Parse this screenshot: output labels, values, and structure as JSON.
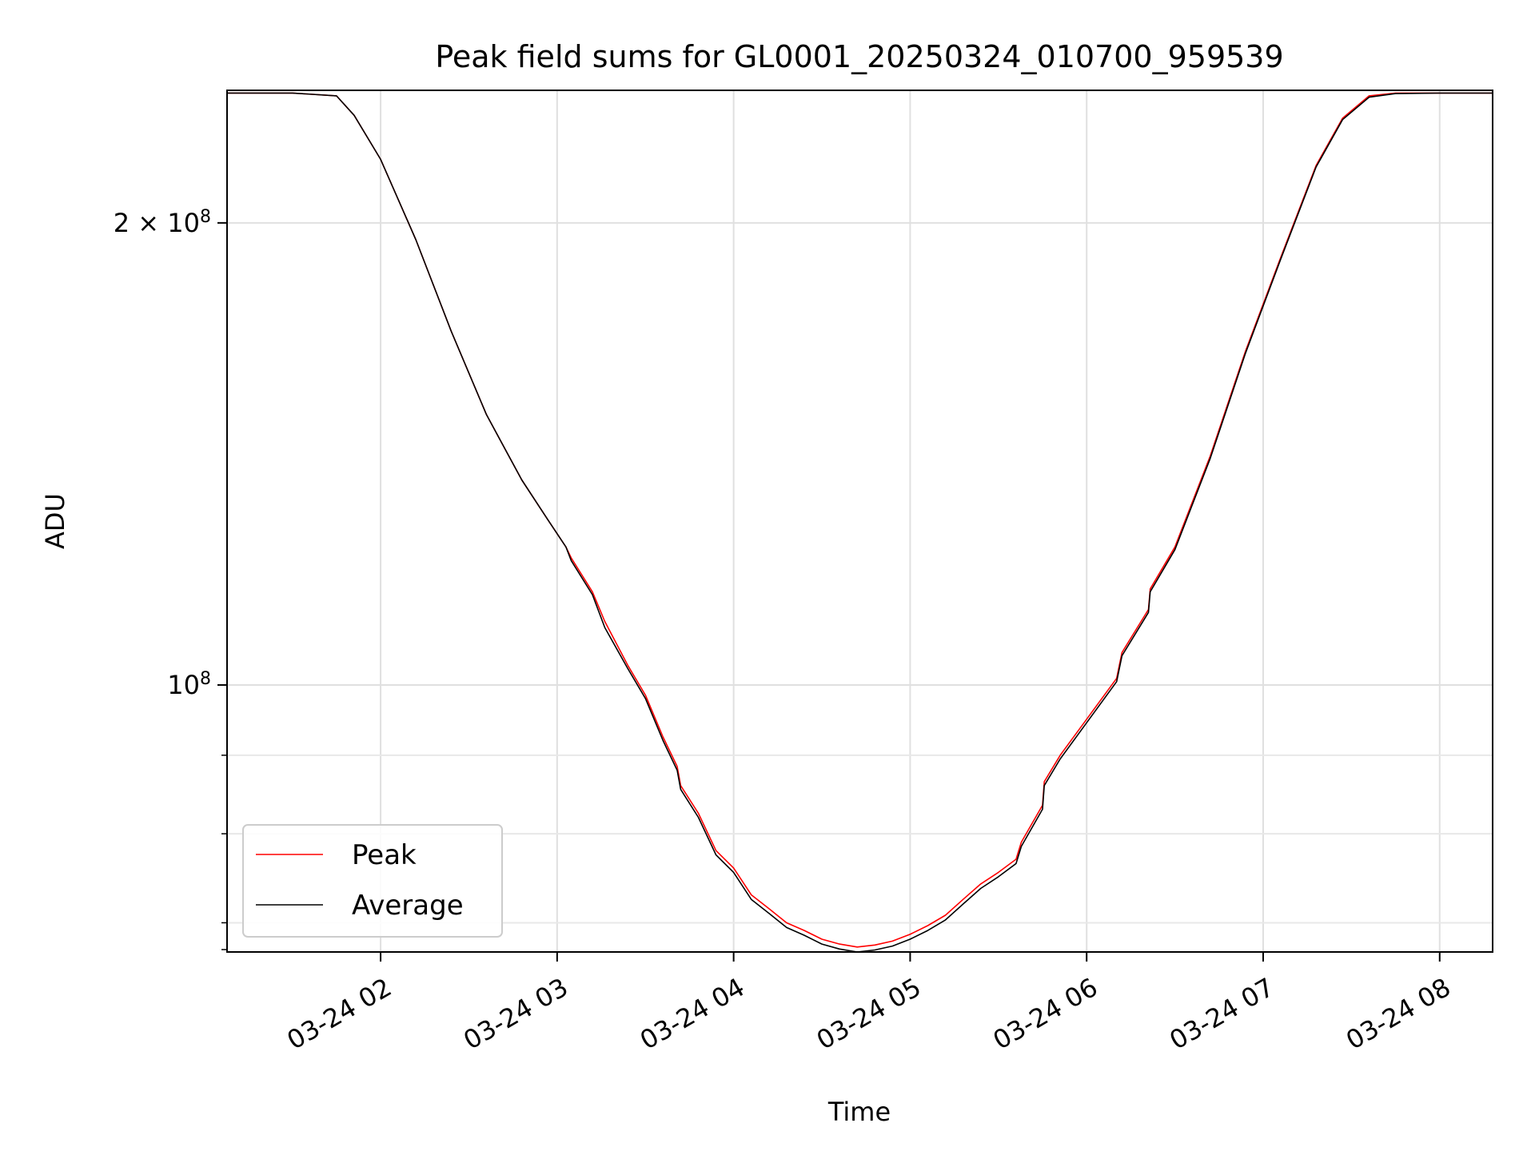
{
  "chart_data": {
    "type": "line",
    "title": "Peak field sums for GL0001_20250324_010700_959539",
    "xlabel": "Time",
    "ylabel": "ADU",
    "x_unit": "hours since 03-24 00:00",
    "xlim": [
      1.13,
      8.3
    ],
    "ylim": [
      67000000,
      244000000
    ],
    "y_scale": "log",
    "grid": true,
    "legend_position": "lower-left",
    "x_ticks": [
      {
        "value": 2,
        "label": "03-24 02"
      },
      {
        "value": 3,
        "label": "03-24 03"
      },
      {
        "value": 4,
        "label": "03-24 04"
      },
      {
        "value": 5,
        "label": "03-24 05"
      },
      {
        "value": 6,
        "label": "03-24 06"
      },
      {
        "value": 7,
        "label": "03-24 07"
      },
      {
        "value": 8,
        "label": "03-24 08"
      }
    ],
    "y_major_ticks": [
      {
        "value": 100000000,
        "base": "10",
        "exp": "8",
        "prefix": ""
      },
      {
        "value": 200000000,
        "base": "10",
        "exp": "8",
        "prefix": "2 × "
      }
    ],
    "y_minor_ticks": [
      70000000,
      80000000,
      90000000
    ],
    "series": [
      {
        "name": "Peak",
        "color": "#ff0000",
        "x": [
          1.13,
          1.5,
          1.75,
          1.85,
          2.0,
          2.2,
          2.4,
          2.6,
          2.8,
          2.95,
          3.05,
          3.08,
          3.2,
          3.27,
          3.4,
          3.5,
          3.6,
          3.68,
          3.7,
          3.8,
          3.9,
          4.0,
          4.1,
          4.2,
          4.3,
          4.4,
          4.5,
          4.6,
          4.7,
          4.8,
          4.9,
          5.0,
          5.1,
          5.2,
          5.3,
          5.4,
          5.5,
          5.6,
          5.63,
          5.75,
          5.76,
          5.85,
          6.0,
          6.17,
          6.2,
          6.35,
          6.36,
          6.5,
          6.7,
          6.9,
          7.1,
          7.3,
          7.45,
          7.6,
          7.75,
          8.0,
          8.3
        ],
        "y": [
          243000000,
          243000000,
          242000000,
          235000000,
          220000000,
          195000000,
          170000000,
          150000000,
          136000000,
          128000000,
          123000000,
          121000000,
          115000000,
          110000000,
          103000000,
          98500000,
          92500000,
          88500000,
          86000000,
          82500000,
          78000000,
          76000000,
          73000000,
          71500000,
          70000000,
          69200000,
          68300000,
          67800000,
          67500000,
          67700000,
          68100000,
          68800000,
          69700000,
          70800000,
          72500000,
          74200000,
          75500000,
          77000000,
          79000000,
          83500000,
          86500000,
          90000000,
          95000000,
          101000000,
          105000000,
          112000000,
          115500000,
          123000000,
          141000000,
          165000000,
          190000000,
          218000000,
          234000000,
          242000000,
          243000000,
          243000000,
          243000000
        ]
      },
      {
        "name": "Average",
        "color": "#000000",
        "x": [
          1.13,
          1.5,
          1.75,
          1.85,
          2.0,
          2.2,
          2.4,
          2.6,
          2.8,
          2.95,
          3.05,
          3.08,
          3.2,
          3.27,
          3.4,
          3.5,
          3.6,
          3.68,
          3.7,
          3.8,
          3.9,
          4.0,
          4.1,
          4.2,
          4.3,
          4.4,
          4.5,
          4.6,
          4.7,
          4.8,
          4.9,
          5.0,
          5.1,
          5.2,
          5.3,
          5.4,
          5.5,
          5.6,
          5.63,
          5.75,
          5.76,
          5.85,
          6.0,
          6.17,
          6.2,
          6.35,
          6.36,
          6.5,
          6.7,
          6.9,
          7.1,
          7.3,
          7.45,
          7.6,
          7.75,
          8.0,
          8.3
        ],
        "y": [
          243000000,
          243000000,
          242000000,
          235000000,
          220000000,
          195000000,
          170000000,
          150000000,
          136000000,
          128000000,
          123000000,
          120500000,
          114500000,
          109000000,
          102500000,
          98000000,
          92000000,
          88000000,
          85500000,
          82000000,
          77500000,
          75500000,
          72500000,
          71000000,
          69500000,
          68700000,
          67800000,
          67300000,
          67000000,
          67200000,
          67600000,
          68300000,
          69200000,
          70300000,
          72000000,
          73700000,
          75000000,
          76500000,
          78500000,
          83000000,
          86000000,
          89500000,
          94500000,
          100500000,
          104500000,
          111500000,
          115000000,
          122500000,
          140500000,
          164500000,
          189500000,
          217500000,
          233500000,
          241500000,
          242800000,
          243000000,
          243000000
        ]
      }
    ]
  }
}
